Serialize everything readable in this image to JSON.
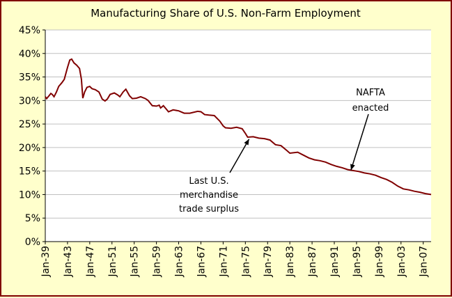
{
  "chart_data": {
    "type": "line",
    "title": "Manufacturing Share of U.S. Non-Farm Employment",
    "xlabel": "",
    "ylabel": "",
    "ylim": [
      0,
      45
    ],
    "y_ticks": [
      "0%",
      "5%",
      "10%",
      "15%",
      "20%",
      "25%",
      "30%",
      "35%",
      "40%",
      "45%"
    ],
    "x_ticks": [
      "Jan-39",
      "Jan-43",
      "Jan-47",
      "Jan-51",
      "Jan-55",
      "Jan-59",
      "Jan-63",
      "Jan-67",
      "Jan-71",
      "Jan-75",
      "Jan-79",
      "Jan-83",
      "Jan-87",
      "Jan-91",
      "Jan-95",
      "Jan-99",
      "Jan-03",
      "Jan-07"
    ],
    "x_range": [
      "1939-01",
      "2008-06"
    ],
    "grid": "horizontal",
    "legend": "none",
    "series": [
      {
        "color": "#800000",
        "points": [
          [
            "1939-01",
            30.8
          ],
          [
            "1939-04",
            30.4
          ],
          [
            "1939-09",
            31.0
          ],
          [
            "1940-01",
            31.5
          ],
          [
            "1940-04",
            31.3
          ],
          [
            "1940-08",
            30.8
          ],
          [
            "1941-01",
            31.8
          ],
          [
            "1941-06",
            33.0
          ],
          [
            "1942-01",
            33.8
          ],
          [
            "1942-06",
            34.5
          ],
          [
            "1943-01",
            37.0
          ],
          [
            "1943-06",
            38.6
          ],
          [
            "1943-10",
            38.8
          ],
          [
            "1944-03",
            38.0
          ],
          [
            "1944-09",
            37.5
          ],
          [
            "1945-03",
            36.8
          ],
          [
            "1945-07",
            34.5
          ],
          [
            "1945-10",
            30.5
          ],
          [
            "1946-02",
            31.8
          ],
          [
            "1946-07",
            32.8
          ],
          [
            "1947-01",
            33.0
          ],
          [
            "1947-06",
            32.5
          ],
          [
            "1948-01",
            32.3
          ],
          [
            "1948-09",
            31.8
          ],
          [
            "1949-04",
            30.3
          ],
          [
            "1949-10",
            29.9
          ],
          [
            "1950-03",
            30.3
          ],
          [
            "1950-09",
            31.3
          ],
          [
            "1951-06",
            31.6
          ],
          [
            "1952-01",
            31.2
          ],
          [
            "1952-06",
            30.8
          ],
          [
            "1953-01",
            31.8
          ],
          [
            "1953-07",
            32.4
          ],
          [
            "1954-03",
            31.0
          ],
          [
            "1954-09",
            30.4
          ],
          [
            "1955-06",
            30.5
          ],
          [
            "1956-03",
            30.8
          ],
          [
            "1957-01",
            30.4
          ],
          [
            "1957-07",
            30.0
          ],
          [
            "1958-04",
            28.9
          ],
          [
            "1959-01",
            28.8
          ],
          [
            "1959-07",
            29.0
          ],
          [
            "1959-10",
            28.4
          ],
          [
            "1960-04",
            28.9
          ],
          [
            "1960-10",
            28.2
          ],
          [
            "1961-03",
            27.6
          ],
          [
            "1962-01",
            28.0
          ],
          [
            "1963-01",
            27.8
          ],
          [
            "1964-01",
            27.3
          ],
          [
            "1965-01",
            27.3
          ],
          [
            "1966-06",
            27.7
          ],
          [
            "1967-01",
            27.6
          ],
          [
            "1967-09",
            27.0
          ],
          [
            "1968-06",
            26.9
          ],
          [
            "1969-06",
            26.8
          ],
          [
            "1970-06",
            25.6
          ],
          [
            "1971-01",
            24.6
          ],
          [
            "1971-06",
            24.2
          ],
          [
            "1972-06",
            24.1
          ],
          [
            "1973-06",
            24.3
          ],
          [
            "1974-06",
            24.0
          ],
          [
            "1975-01",
            23.0
          ],
          [
            "1975-06",
            22.2
          ],
          [
            "1976-06",
            22.3
          ],
          [
            "1977-06",
            22.0
          ],
          [
            "1978-06",
            21.9
          ],
          [
            "1979-06",
            21.6
          ],
          [
            "1980-06",
            20.6
          ],
          [
            "1981-06",
            20.4
          ],
          [
            "1982-06",
            19.4
          ],
          [
            "1983-01",
            18.8
          ],
          [
            "1984-06",
            19.0
          ],
          [
            "1985-06",
            18.4
          ],
          [
            "1986-06",
            17.8
          ],
          [
            "1987-06",
            17.4
          ],
          [
            "1988-06",
            17.2
          ],
          [
            "1989-06",
            16.9
          ],
          [
            "1990-06",
            16.4
          ],
          [
            "1991-06",
            16.0
          ],
          [
            "1992-06",
            15.7
          ],
          [
            "1993-06",
            15.3
          ],
          [
            "1994-06",
            15.1
          ],
          [
            "1995-06",
            14.9
          ],
          [
            "1996-06",
            14.6
          ],
          [
            "1997-06",
            14.4
          ],
          [
            "1998-06",
            14.1
          ],
          [
            "1999-06",
            13.6
          ],
          [
            "2000-06",
            13.2
          ],
          [
            "2001-06",
            12.6
          ],
          [
            "2002-06",
            11.8
          ],
          [
            "2003-06",
            11.2
          ],
          [
            "2004-06",
            11.0
          ],
          [
            "2005-06",
            10.7
          ],
          [
            "2006-06",
            10.5
          ],
          [
            "2007-06",
            10.2
          ],
          [
            "2008-06",
            10.0
          ]
        ]
      }
    ],
    "annotations": [
      {
        "lines": [
          "NAFTA",
          "enacted"
        ],
        "target": [
          "1994-01",
          15.2
        ]
      },
      {
        "lines": [
          "Last U.S.",
          "merchandise",
          "trade surplus"
        ],
        "target": [
          "1975-09",
          21.8
        ]
      }
    ]
  }
}
